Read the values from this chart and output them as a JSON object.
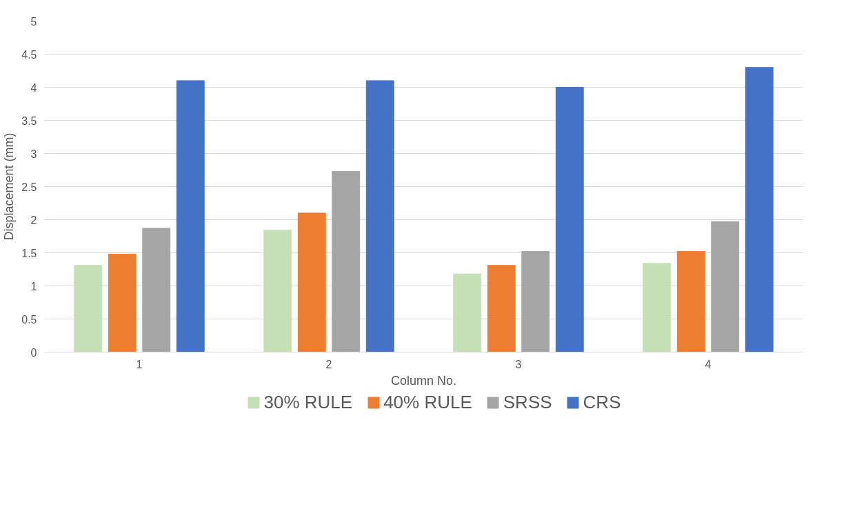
{
  "chart_data": {
    "type": "bar",
    "xlabel": "Column No.",
    "ylabel": "Displacement (mm)",
    "categories": [
      "1",
      "2",
      "3",
      "4"
    ],
    "series": [
      {
        "name": "30% RULE",
        "color": "#c5e0b4",
        "values": [
          1.31,
          1.84,
          1.18,
          1.34
        ]
      },
      {
        "name": "40% RULE",
        "color": "#ed7d31",
        "values": [
          1.48,
          2.1,
          1.31,
          1.52
        ]
      },
      {
        "name": "SRSS",
        "color": "#a5a5a5",
        "values": [
          1.87,
          2.73,
          1.52,
          1.97
        ]
      },
      {
        "name": "CRS",
        "color": "#4472c4",
        "values": [
          4.1,
          4.1,
          4.0,
          4.3
        ]
      }
    ],
    "ylim": [
      0,
      5
    ],
    "yticks": [
      0,
      0.5,
      1,
      1.5,
      2,
      2.5,
      3,
      3.5,
      4,
      4.5,
      5
    ],
    "grid": "y",
    "legend": "bottom"
  }
}
